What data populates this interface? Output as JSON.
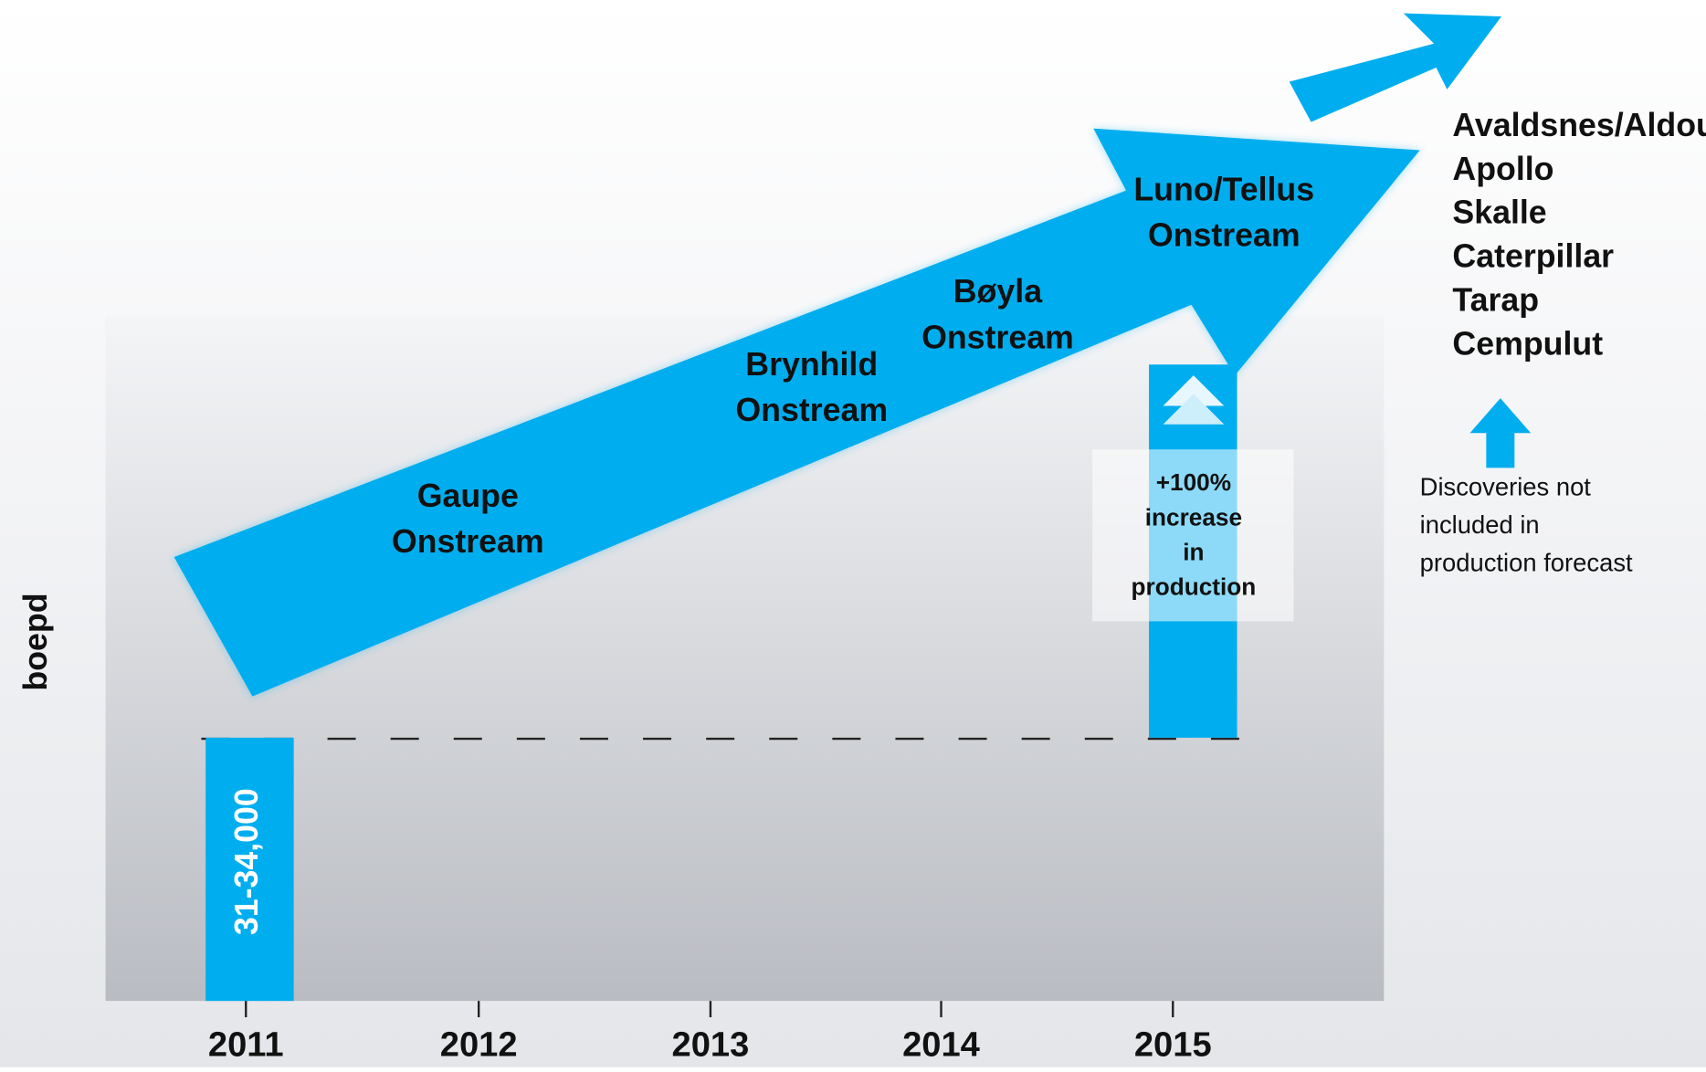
{
  "chart_data": {
    "type": "infographic",
    "y_label": "boepd",
    "categories": [
      "2011",
      "2012",
      "2013",
      "2014",
      "2015"
    ],
    "bar_label": "31-34,000",
    "increase_label": [
      "+100%",
      "increase",
      "in",
      "production"
    ],
    "milestones": [
      [
        "Gaupe",
        "Onstream"
      ],
      [
        "Brynhild",
        "Onstream"
      ],
      [
        "Bøyla",
        "Onstream"
      ],
      [
        "Luno/Tellus",
        "Onstream"
      ]
    ],
    "discoveries": [
      "Avaldsnes/Aldous",
      "Apollo",
      "Skalle",
      "Caterpillar",
      "Tarap",
      "Cempulut"
    ],
    "discoveries_note": [
      "Discoveries not",
      "included in",
      "production forecast"
    ],
    "color": "#00aeef"
  }
}
